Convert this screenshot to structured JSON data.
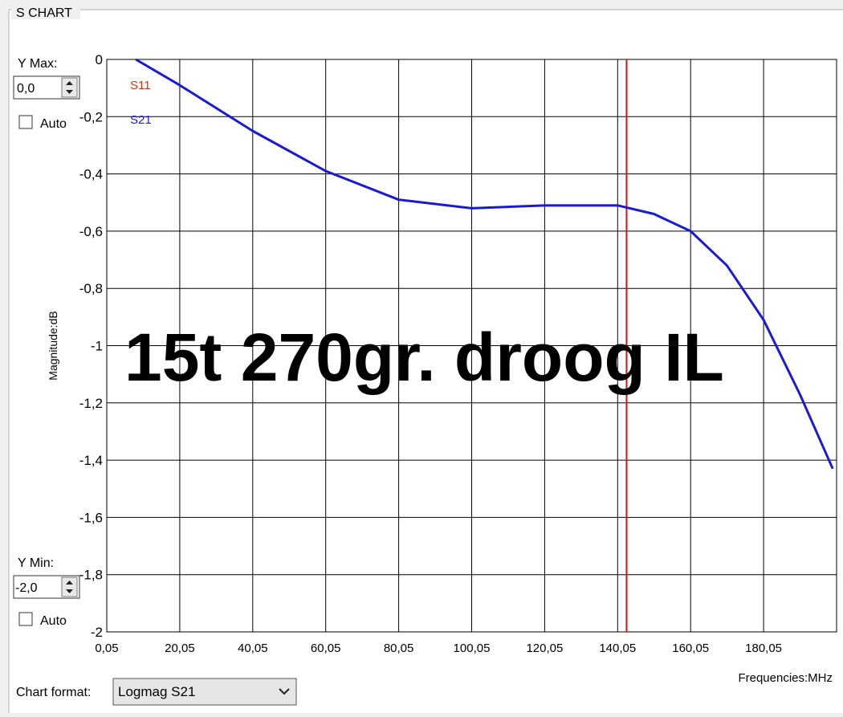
{
  "group_title": "S CHART",
  "controls": {
    "ymax": {
      "label": "Y Max:",
      "value": "0,0",
      "auto_label": "Auto"
    },
    "ymin": {
      "label": "Y Min:",
      "value": "-2,0",
      "auto_label": "Auto"
    },
    "chart_format": {
      "label": "Chart format:",
      "value": "Logmag S21"
    }
  },
  "chart_data": {
    "type": "line",
    "annotation": "15t 270gr. droog IL",
    "y_label": "Magnitude:dB",
    "x_label": "Frequencies:MHz",
    "x": [
      8,
      20.05,
      40.05,
      60.05,
      80.05,
      100.05,
      120.05,
      140.05,
      150,
      160.05,
      170,
      180.05,
      190,
      199
    ],
    "series": [
      {
        "name": "S11",
        "color": "#e03010",
        "values": [
          null,
          null,
          null,
          null,
          null,
          null,
          null,
          null,
          null,
          null,
          null,
          null,
          null,
          null
        ]
      },
      {
        "name": "S21",
        "color": "#1a1ad6",
        "values": [
          0,
          -0.09,
          -0.25,
          -0.39,
          -0.49,
          -0.52,
          -0.51,
          -0.51,
          -0.54,
          -0.6,
          -0.72,
          -0.91,
          -1.17,
          -1.43
        ]
      }
    ],
    "marker": {
      "x": 142.5,
      "color": "#e01010"
    },
    "xlim": [
      0.05,
      200.05
    ],
    "ylim": [
      -2,
      0
    ],
    "xticks": [
      {
        "value": 0.05,
        "label": "0,05"
      },
      {
        "value": 20.05,
        "label": "20,05"
      },
      {
        "value": 40.05,
        "label": "40,05"
      },
      {
        "value": 60.05,
        "label": "60,05"
      },
      {
        "value": 80.05,
        "label": "80,05"
      },
      {
        "value": 100.05,
        "label": "100,05"
      },
      {
        "value": 120.05,
        "label": "120,05"
      },
      {
        "value": 140.05,
        "label": "140,05"
      },
      {
        "value": 160.05,
        "label": "160,05"
      },
      {
        "value": 180.05,
        "label": "180,05"
      }
    ],
    "yticks": [
      0,
      {
        "value": -0.2,
        "label": "-0,2"
      },
      {
        "value": -0.4,
        "label": "-0,4"
      },
      {
        "value": -0.6,
        "label": "-0,6"
      },
      {
        "value": -0.8,
        "label": "-0,8"
      },
      -1,
      {
        "value": -1.2,
        "label": "-1,2"
      },
      {
        "value": -1.4,
        "label": "-1,4"
      },
      {
        "value": -1.6,
        "label": "-1,6"
      },
      {
        "value": -1.8,
        "label": "-1,8"
      },
      -2
    ],
    "grid": true
  }
}
